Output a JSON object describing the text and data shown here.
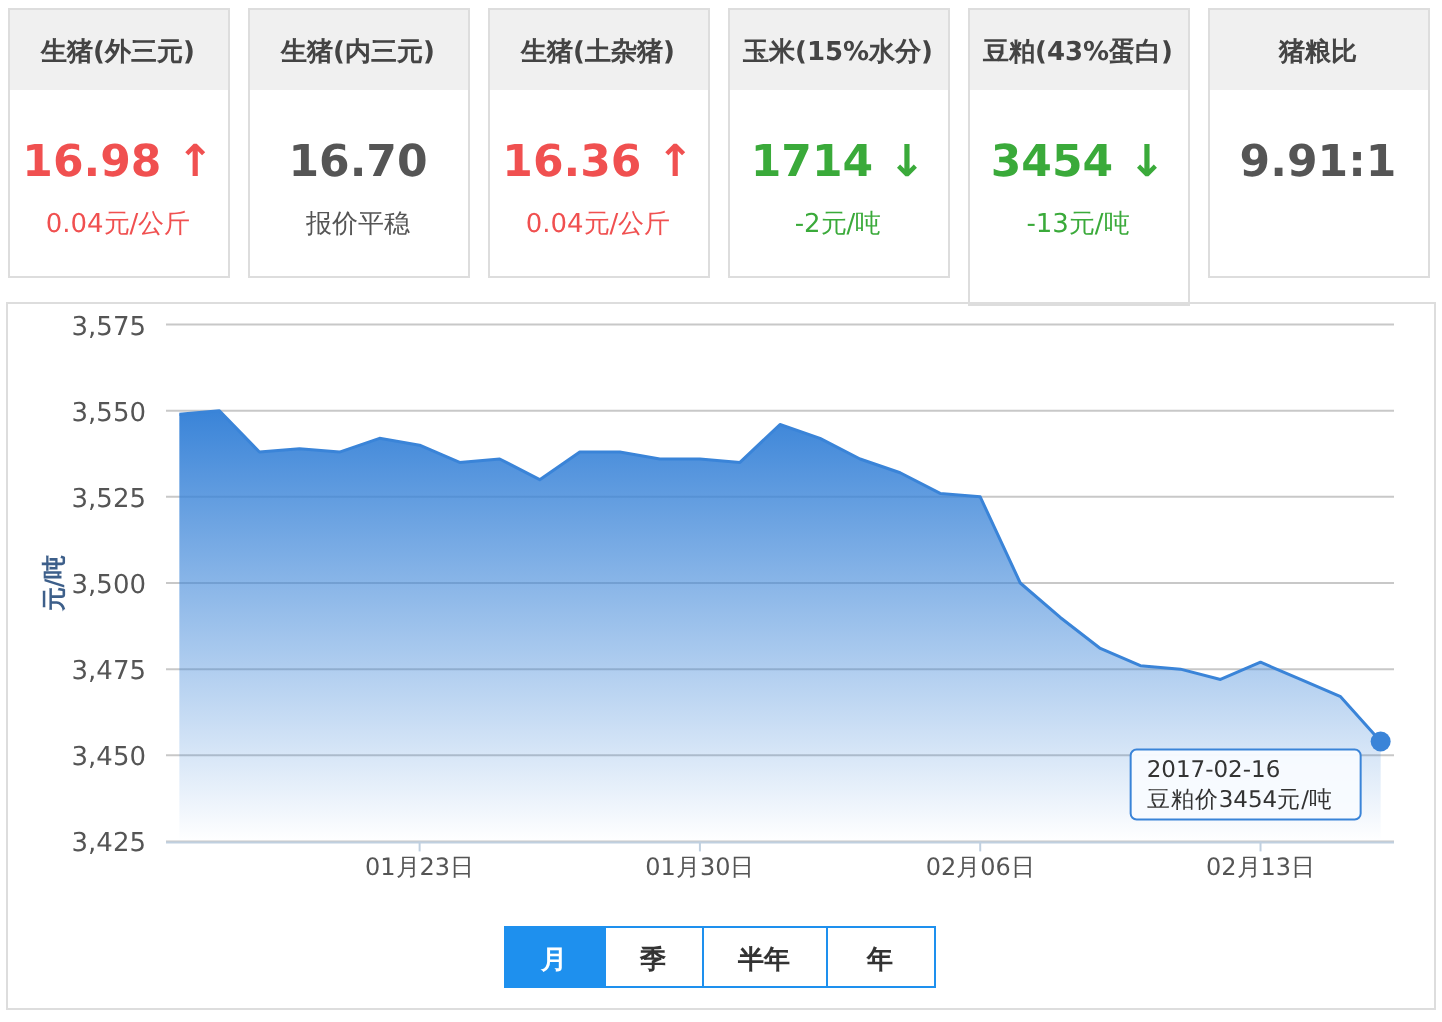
{
  "chart_data": [
    {
      "type": "other",
      "annotations": [
        "生猪(外三元)",
        "16.98 ↑",
        "0.04元/公斤",
        "生猪(内三元)",
        "16.70",
        "报价平稳",
        "生猪(土杂猪)",
        "16.36 ↑",
        "0.04元/公斤",
        "玉米(15%水分)",
        "1714 ↓",
        "-2元/吨",
        "豆粕(43%蛋白)",
        "3454 ↓",
        "-13元/吨",
        "猪粮比",
        "9.91:1"
      ],
      "colors": [
        "#f05050",
        "#555555",
        "#f05050",
        "#3aaa3a",
        "#3aaa3a",
        "#555555"
      ]
    },
    {
      "type": "area",
      "ylabel": "元/吨",
      "x": [
        "2017-01-17",
        "2017-01-18",
        "2017-01-19",
        "2017-01-20",
        "2017-01-21",
        "2017-01-22",
        "2017-01-23",
        "2017-01-24",
        "2017-01-25",
        "2017-01-26",
        "2017-01-27",
        "2017-01-28",
        "2017-01-29",
        "2017-01-30",
        "2017-01-31",
        "2017-02-01",
        "2017-02-02",
        "2017-02-03",
        "2017-02-04",
        "2017-02-05",
        "2017-02-06",
        "2017-02-07",
        "2017-02-08",
        "2017-02-09",
        "2017-02-10",
        "2017-02-11",
        "2017-02-12",
        "2017-02-13",
        "2017-02-14",
        "2017-02-15",
        "2017-02-16"
      ],
      "series": [
        {
          "color": "#3a84d8",
          "values": [
            3549,
            3550,
            3538,
            3539,
            3538,
            3542,
            3540,
            3535,
            3536,
            3530,
            3538,
            3538,
            3536,
            3536,
            3535,
            3546,
            3542,
            3536,
            3532,
            3526,
            3525,
            3500,
            3490,
            3481,
            3476,
            3475,
            3472,
            3477,
            3472,
            3467,
            3454
          ]
        }
      ],
      "xlim": [
        "2017-01-16T16:00",
        "2017-02-16T08:00"
      ],
      "xticks": [
        {
          "value": "2017-01-23",
          "label": "01月23日"
        },
        {
          "value": "2017-01-30",
          "label": "01月30日"
        },
        {
          "value": "2017-02-06",
          "label": "02月06日"
        },
        {
          "value": "2017-02-13",
          "label": "02月13日"
        }
      ],
      "ylim": [
        3425,
        3575
      ],
      "yticks": [
        {
          "value": 3425,
          "label": "3,425"
        },
        {
          "value": 3450,
          "label": "3,450"
        },
        {
          "value": 3475,
          "label": "3,475"
        },
        {
          "value": 3500,
          "label": "3,500"
        },
        {
          "value": 3525,
          "label": "3,525"
        },
        {
          "value": 3550,
          "label": "3,550"
        },
        {
          "value": 3575,
          "label": "3,575"
        }
      ],
      "grid": "y",
      "annotations": [
        {
          "text": "2017-02-16\n豆粕价3454元/吨",
          "x": "2017-02-16",
          "y": 3454
        }
      ]
    },
    {
      "type": "other",
      "annotations": [
        "月",
        "季",
        "半年",
        "年"
      ]
    }
  ]
}
